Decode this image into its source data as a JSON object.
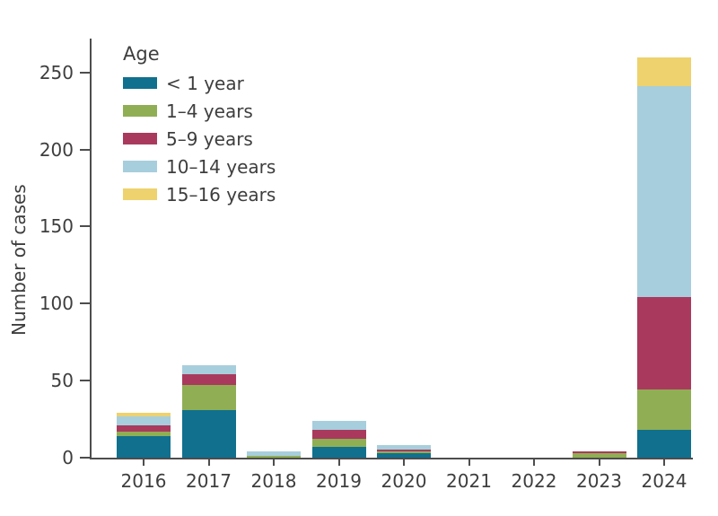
{
  "figure": {
    "background": "#ffffff",
    "text_color": "#3e3e3e",
    "axis_color": "#4d4d4d"
  },
  "legend": {
    "title": "Age",
    "items": [
      {
        "label": "< 1 year",
        "color": "#10708e"
      },
      {
        "label": "1–4 years",
        "color": "#90ae54"
      },
      {
        "label": "5–9 years",
        "color": "#a93a5e"
      },
      {
        "label": "10–14 years",
        "color": "#a7cedc"
      },
      {
        "label": "15–16 years",
        "color": "#edd26d"
      }
    ]
  },
  "chart_data": {
    "type": "bar",
    "stacked": true,
    "title": "",
    "xlabel": "",
    "ylabel": "Number of cases",
    "categories": [
      "2016",
      "2017",
      "2018",
      "2019",
      "2020",
      "2021",
      "2022",
      "2023",
      "2024"
    ],
    "series": [
      {
        "name": "< 1 year",
        "color": "#10708e",
        "values": [
          14,
          31,
          0,
          7,
          3,
          0,
          0,
          0,
          18
        ]
      },
      {
        "name": "1–4 years",
        "color": "#90ae54",
        "values": [
          3,
          16,
          1,
          5,
          1,
          0,
          0,
          3,
          26
        ]
      },
      {
        "name": "5–9 years",
        "color": "#a93a5e",
        "values": [
          4,
          7,
          0,
          6,
          1,
          0,
          0,
          1,
          60
        ]
      },
      {
        "name": "10–14 years",
        "color": "#a7cedc",
        "values": [
          6,
          6,
          3,
          6,
          3,
          0,
          0,
          0,
          137
        ]
      },
      {
        "name": "15–16 years",
        "color": "#edd26d",
        "values": [
          2,
          0,
          0,
          0,
          0,
          0,
          0,
          0,
          19
        ]
      }
    ],
    "totals": [
      29,
      60,
      4,
      24,
      8,
      0,
      0,
      4,
      260
    ],
    "y_ticks": [
      0,
      50,
      100,
      150,
      200,
      250
    ],
    "ylim": [
      0,
      272
    ],
    "grid": false,
    "legend_position": "top-left-inside"
  }
}
